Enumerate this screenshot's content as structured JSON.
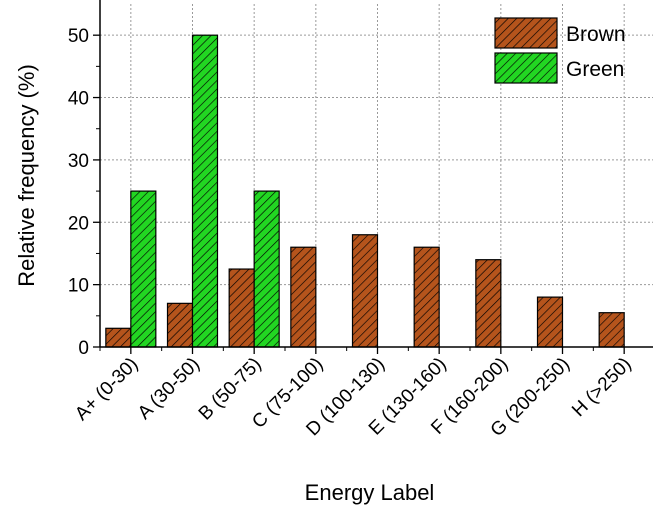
{
  "chart_data": {
    "type": "bar",
    "title": "",
    "xlabel": "Energy Label",
    "ylabel": "Relative frequency (%)",
    "ylim": [
      0,
      55
    ],
    "yticks": [
      0,
      10,
      20,
      30,
      40,
      50
    ],
    "grid": true,
    "legend_position": "top-right",
    "categories": [
      "A+ (0-30)",
      "A (30-50)",
      "B (50-75)",
      "C (75-100)",
      "D (100-130)",
      "E (130-160)",
      "F (160-200)",
      "G (200-250)",
      "H (>250)"
    ],
    "series": [
      {
        "name": "Brown",
        "color": "#b5541c",
        "pattern": "diagonal-hatch",
        "values": [
          3,
          7,
          12.5,
          16,
          18,
          16,
          14,
          8,
          5.5
        ]
      },
      {
        "name": "Green",
        "color": "#22d622",
        "pattern": "diagonal-hatch",
        "values": [
          25,
          50,
          25,
          null,
          null,
          null,
          null,
          null,
          null
        ]
      }
    ]
  }
}
